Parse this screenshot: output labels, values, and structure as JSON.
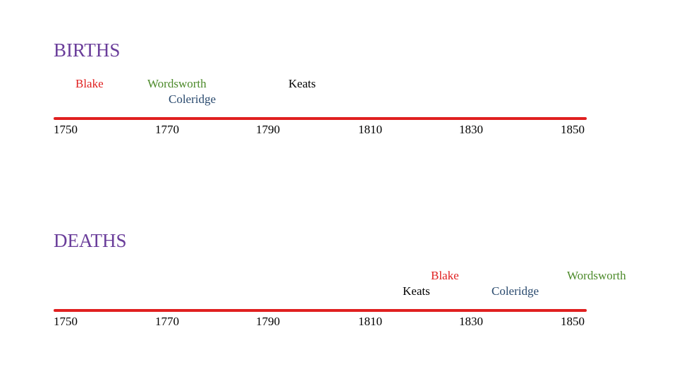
{
  "colors": {
    "heading": "#6a3d9a",
    "axis_line": "#e02020",
    "blake": "#e02020",
    "wordsworth": "#4c8a2a",
    "coleridge": "#2a4a6e",
    "keats": "#000000"
  },
  "births": {
    "heading": "BIRTHS",
    "poets": {
      "blake": "Blake",
      "wordsworth": "Wordsworth",
      "coleridge": "Coleridge",
      "keats": "Keats"
    },
    "ticks": [
      "1750",
      "1770",
      "1790",
      "1810",
      "1830",
      "1850"
    ]
  },
  "deaths": {
    "heading": "DEATHS",
    "poets": {
      "blake": "Blake",
      "keats": "Keats",
      "coleridge": "Coleridge",
      "wordsworth": "Wordsworth"
    },
    "ticks": [
      "1750",
      "1770",
      "1790",
      "1810",
      "1830",
      "1850"
    ]
  }
}
